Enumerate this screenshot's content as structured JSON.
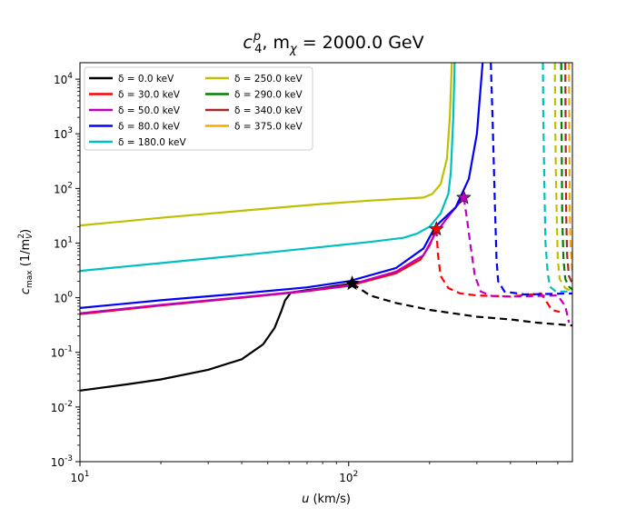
{
  "chart_data": {
    "type": "line",
    "title": {
      "pre": "c",
      "sub": "4",
      "sup": "p",
      "mid": ", m",
      "msub": "χ",
      "post": " = 2000.0 GeV"
    },
    "xlabel": {
      "pre": "u",
      "post": " (km/s)"
    },
    "ylabel": {
      "main": "c",
      "sub": "max",
      "post": " (1/m",
      "vsub": "V",
      "vsup": "2",
      "end": ")"
    },
    "x_scale": "log",
    "y_scale": "log",
    "xlim": [
      10,
      680
    ],
    "ylim": [
      0.001,
      20000
    ],
    "x_ticks": [
      {
        "v": 10,
        "e": "1"
      },
      {
        "v": 100,
        "e": "2"
      }
    ],
    "y_ticks": [
      {
        "v": 0.001,
        "e": "-3"
      },
      {
        "v": 0.01,
        "e": "-2"
      },
      {
        "v": 0.1,
        "e": "-1"
      },
      {
        "v": 1,
        "e": "0"
      },
      {
        "v": 10,
        "e": "1"
      },
      {
        "v": 100,
        "e": "2"
      },
      {
        "v": 1000,
        "e": "3"
      },
      {
        "v": 10000,
        "e": "4"
      }
    ],
    "legend_position": "top-left",
    "series": [
      {
        "name": "0.0",
        "label": "δ = 0.0 keV",
        "color": "#000000",
        "solid": [
          [
            10,
            0.02
          ],
          [
            15,
            0.026
          ],
          [
            20,
            0.032
          ],
          [
            30,
            0.048
          ],
          [
            40,
            0.075
          ],
          [
            48,
            0.14
          ],
          [
            53,
            0.28
          ],
          [
            56,
            0.55
          ],
          [
            58,
            0.9
          ],
          [
            61,
            1.25
          ],
          [
            70,
            1.38
          ],
          [
            80,
            1.5
          ],
          [
            90,
            1.65
          ],
          [
            103,
            1.82
          ]
        ],
        "dashed": [
          [
            103,
            1.82
          ],
          [
            120,
            1.1
          ],
          [
            150,
            0.8
          ],
          [
            200,
            0.6
          ],
          [
            300,
            0.45
          ],
          [
            400,
            0.4
          ],
          [
            500,
            0.35
          ],
          [
            680,
            0.31
          ]
        ],
        "marker": [
          103,
          1.82
        ]
      },
      {
        "name": "30.0",
        "label": "δ = 30.0 keV",
        "color": "#ff0000",
        "solid": [
          [
            10,
            0.5
          ],
          [
            20,
            0.72
          ],
          [
            40,
            1.0
          ],
          [
            70,
            1.32
          ],
          [
            100,
            1.65
          ],
          [
            150,
            2.8
          ],
          [
            185,
            5.0
          ],
          [
            200,
            9.0
          ],
          [
            212,
            18.0
          ]
        ],
        "dashed": [
          [
            212,
            18.0
          ],
          [
            215,
            6.0
          ],
          [
            220,
            2.5
          ],
          [
            235,
            1.5
          ],
          [
            260,
            1.2
          ],
          [
            300,
            1.1
          ],
          [
            400,
            1.05
          ],
          [
            520,
            1.2
          ],
          [
            570,
            0.6
          ],
          [
            610,
            0.55
          ]
        ],
        "marker": [
          212,
          18.0
        ]
      },
      {
        "name": "50.0",
        "label": "δ = 50.0 keV",
        "color": "#bf00bf",
        "solid": [
          [
            10,
            0.52
          ],
          [
            20,
            0.74
          ],
          [
            40,
            1.02
          ],
          [
            70,
            1.34
          ],
          [
            100,
            1.7
          ],
          [
            150,
            3.0
          ],
          [
            190,
            6.0
          ],
          [
            210,
            15.0
          ],
          [
            240,
            35.0
          ],
          [
            268,
            68.0
          ]
        ],
        "dashed": [
          [
            268,
            68.0
          ],
          [
            275,
            30.0
          ],
          [
            285,
            8.0
          ],
          [
            295,
            2.5
          ],
          [
            310,
            1.3
          ],
          [
            340,
            1.08
          ],
          [
            400,
            1.05
          ],
          [
            600,
            1.1
          ],
          [
            640,
            0.7
          ],
          [
            660,
            0.35
          ]
        ],
        "marker": [
          268,
          68.0
        ]
      },
      {
        "name": "80.0",
        "label": "δ = 80.0 keV",
        "color": "#0000ff",
        "solid": [
          [
            10,
            0.65
          ],
          [
            20,
            0.9
          ],
          [
            40,
            1.2
          ],
          [
            70,
            1.55
          ],
          [
            100,
            2.0
          ],
          [
            150,
            3.5
          ],
          [
            190,
            8.0
          ],
          [
            210,
            20.0
          ],
          [
            250,
            45.0
          ],
          [
            280,
            150.0
          ],
          [
            300,
            1000.0
          ],
          [
            315,
            20000.0
          ]
        ],
        "dashed": [
          [
            338,
            20000.0
          ],
          [
            343,
            2000.0
          ],
          [
            350,
            50.0
          ],
          [
            355,
            5.0
          ],
          [
            360,
            2.0
          ],
          [
            380,
            1.3
          ],
          [
            450,
            1.15
          ],
          [
            680,
            1.2
          ]
        ]
      },
      {
        "name": "180.0",
        "label": "δ = 180.0 keV",
        "color": "#00bfbf",
        "solid": [
          [
            10,
            3.1
          ],
          [
            20,
            4.3
          ],
          [
            40,
            6.0
          ],
          [
            80,
            8.5
          ],
          [
            120,
            10.5
          ],
          [
            160,
            12.5
          ],
          [
            180,
            15.0
          ],
          [
            200,
            20.0
          ],
          [
            220,
            35.0
          ],
          [
            235,
            80.0
          ],
          [
            240,
            200.0
          ],
          [
            245,
            2000.0
          ],
          [
            248,
            20000.0
          ]
        ],
        "dashed": [
          [
            528,
            20000.0
          ],
          [
            530,
            2000.0
          ],
          [
            535,
            100.0
          ],
          [
            540,
            10.0
          ],
          [
            550,
            3.0
          ],
          [
            560,
            1.6
          ],
          [
            590,
            1.3
          ],
          [
            680,
            1.3
          ]
        ]
      },
      {
        "name": "250.0",
        "label": "δ = 250.0 keV",
        "color": "#bfbf00",
        "solid": [
          [
            10,
            21.0
          ],
          [
            20,
            29.0
          ],
          [
            40,
            39.0
          ],
          [
            80,
            52.0
          ],
          [
            120,
            60.0
          ],
          [
            160,
            65.0
          ],
          [
            190,
            68.0
          ],
          [
            205,
            80.0
          ],
          [
            220,
            120.0
          ],
          [
            232,
            350.0
          ],
          [
            238,
            2000.0
          ],
          [
            242,
            20000.0
          ]
        ],
        "dashed": [
          [
            585,
            20000.0
          ],
          [
            587,
            2000.0
          ],
          [
            590,
            200.0
          ],
          [
            595,
            30.0
          ],
          [
            600,
            5.0
          ],
          [
            610,
            2.2
          ],
          [
            640,
            1.5
          ],
          [
            680,
            1.3
          ]
        ]
      },
      {
        "name": "290.0",
        "label": "δ = 290.0 keV",
        "color": "#008000",
        "dashed": [
          [
            618,
            20000.0
          ],
          [
            620,
            1000.0
          ],
          [
            623,
            30.0
          ],
          [
            630,
            5.0
          ],
          [
            640,
            2.2
          ],
          [
            660,
            1.6
          ],
          [
            680,
            1.4
          ]
        ]
      },
      {
        "name": "340.0",
        "label": "δ = 340.0 keV",
        "color": "#a52a2a",
        "dashed": [
          [
            640,
            20000.0
          ],
          [
            642,
            1000.0
          ],
          [
            645,
            30.0
          ],
          [
            650,
            6.0
          ],
          [
            660,
            2.5
          ],
          [
            680,
            1.8
          ]
        ]
      },
      {
        "name": "375.0",
        "label": "δ = 375.0 keV",
        "color": "#ffa500",
        "dashed": [
          [
            660,
            20000.0
          ],
          [
            662,
            1000.0
          ],
          [
            665,
            40.0
          ],
          [
            670,
            8.0
          ],
          [
            680,
            3.0
          ]
        ]
      }
    ]
  }
}
